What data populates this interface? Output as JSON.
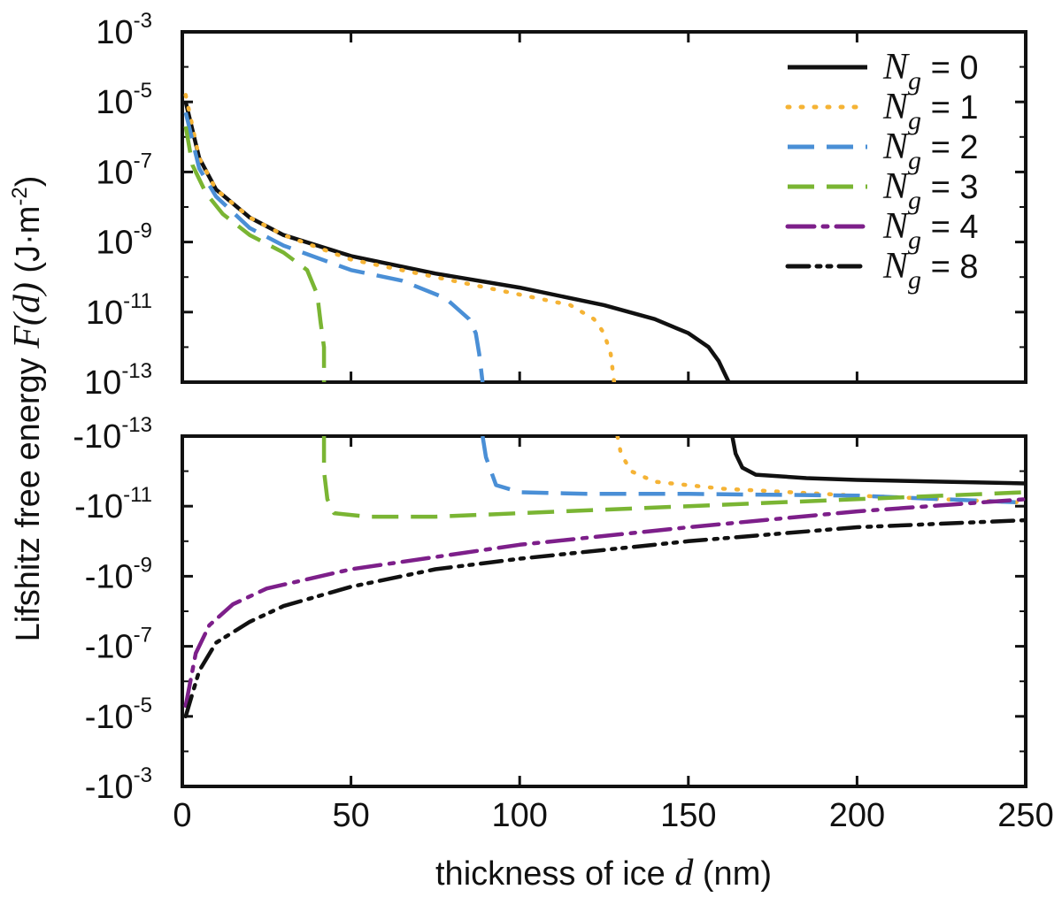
{
  "chart_data": {
    "type": "line",
    "xlabel": "thickness of ice d (nm)",
    "xlabel_parts": {
      "prefix": "thickness of ice ",
      "var": "d",
      "suffix": " (nm)"
    },
    "ylabel": "Lifshitz free energy F(d) (J·m⁻²)",
    "ylabel_parts": {
      "prefix": "Lifshitz free energy ",
      "var": "F(d)",
      "suffix": " (J·m",
      "exp": "-2",
      "close": ")"
    },
    "xlim": [
      0,
      250
    ],
    "x_ticks": [
      0,
      50,
      100,
      150,
      200,
      250
    ],
    "top_panel": {
      "scale": "log",
      "ylim_exp": [
        -13,
        -3
      ],
      "tick_exps": [
        -3,
        -5,
        -7,
        -9,
        -11,
        -13
      ],
      "tick_base": "10"
    },
    "bottom_panel": {
      "scale": "negative-log",
      "ylim_exp": [
        -13,
        -3
      ],
      "tick_exps": [
        -13,
        -11,
        -9,
        -7,
        -5,
        -3
      ],
      "tick_base": "-10"
    },
    "legend": {
      "position": "top-right",
      "symbol": "N",
      "subscript": "g",
      "entries": [
        "= 0",
        "= 1",
        "= 2",
        "= 3",
        "= 4",
        "= 8"
      ]
    },
    "series": [
      {
        "name": "N_g = 0",
        "color": "#111111",
        "dash": "solid",
        "top": [
          [
            1,
            -5.0
          ],
          [
            5,
            -6.6
          ],
          [
            10,
            -7.5
          ],
          [
            20,
            -8.3
          ],
          [
            30,
            -8.8
          ],
          [
            50,
            -9.4
          ],
          [
            75,
            -9.9
          ],
          [
            100,
            -10.3
          ],
          [
            125,
            -10.8
          ],
          [
            140,
            -11.2
          ],
          [
            150,
            -11.6
          ],
          [
            156,
            -12.0
          ],
          [
            159,
            -12.4
          ],
          [
            161,
            -12.8
          ],
          [
            162,
            -13.0
          ]
        ],
        "bottom": [
          [
            163,
            -13.0
          ],
          [
            164,
            -12.5
          ],
          [
            166,
            -12.1
          ],
          [
            170,
            -11.9
          ],
          [
            185,
            -11.8
          ],
          [
            200,
            -11.75
          ],
          [
            225,
            -11.7
          ],
          [
            250,
            -11.65
          ]
        ]
      },
      {
        "name": "N_g = 1",
        "color": "#f5b335",
        "dash": "dotted",
        "top": [
          [
            1,
            -4.8
          ],
          [
            5,
            -6.6
          ],
          [
            10,
            -7.5
          ],
          [
            20,
            -8.3
          ],
          [
            30,
            -8.8
          ],
          [
            50,
            -9.5
          ],
          [
            75,
            -10.0
          ],
          [
            100,
            -10.5
          ],
          [
            115,
            -10.8
          ],
          [
            122,
            -11.2
          ],
          [
            125,
            -11.6
          ],
          [
            127,
            -12.2
          ],
          [
            128,
            -13.0
          ]
        ],
        "bottom": [
          [
            129,
            -13.0
          ],
          [
            130,
            -12.5
          ],
          [
            133,
            -12.0
          ],
          [
            140,
            -11.7
          ],
          [
            160,
            -11.5
          ],
          [
            200,
            -11.3
          ],
          [
            250,
            -11.1
          ]
        ]
      },
      {
        "name": "N_g = 2",
        "color": "#4a8fd6",
        "dash": "dashed",
        "top": [
          [
            1,
            -5.3
          ],
          [
            5,
            -6.9
          ],
          [
            10,
            -7.7
          ],
          [
            20,
            -8.6
          ],
          [
            30,
            -9.1
          ],
          [
            50,
            -9.8
          ],
          [
            65,
            -10.1
          ],
          [
            78,
            -10.6
          ],
          [
            85,
            -11.2
          ],
          [
            87,
            -11.6
          ],
          [
            88,
            -12.2
          ],
          [
            89,
            -13.0
          ]
        ],
        "bottom": [
          [
            89,
            -13.0
          ],
          [
            90,
            -12.4
          ],
          [
            93,
            -11.6
          ],
          [
            100,
            -11.4
          ],
          [
            120,
            -11.35
          ],
          [
            150,
            -11.35
          ],
          [
            200,
            -11.3
          ],
          [
            250,
            -11.1
          ]
        ]
      },
      {
        "name": "N_g = 3",
        "color": "#7ab533",
        "dash": "dashed",
        "top": [
          [
            1,
            -5.7
          ],
          [
            3,
            -6.8
          ],
          [
            7,
            -7.6
          ],
          [
            12,
            -8.2
          ],
          [
            20,
            -8.8
          ],
          [
            30,
            -9.3
          ],
          [
            37,
            -9.8
          ],
          [
            40,
            -10.5
          ],
          [
            41,
            -11.3
          ],
          [
            42,
            -12.0
          ],
          [
            42,
            -13.0
          ]
        ],
        "bottom": [
          [
            42,
            -13.0
          ],
          [
            42,
            -12.0
          ],
          [
            43,
            -11.2
          ],
          [
            45,
            -10.8
          ],
          [
            55,
            -10.7
          ],
          [
            75,
            -10.7
          ],
          [
            100,
            -10.8
          ],
          [
            150,
            -11.0
          ],
          [
            200,
            -11.2
          ],
          [
            250,
            -11.4
          ]
        ]
      },
      {
        "name": "N_g = 4",
        "color": "#7d1f8a",
        "dash": "dashdot",
        "bottom": [
          [
            1,
            -5.3
          ],
          [
            4,
            -6.8
          ],
          [
            8,
            -7.6
          ],
          [
            15,
            -8.2
          ],
          [
            25,
            -8.65
          ],
          [
            50,
            -9.2
          ],
          [
            100,
            -9.9
          ],
          [
            150,
            -10.4
          ],
          [
            200,
            -10.85
          ],
          [
            250,
            -11.2
          ]
        ]
      },
      {
        "name": "N_g = 8",
        "color": "#111111",
        "dash": "dashdotdot",
        "bottom": [
          [
            1,
            -5.0
          ],
          [
            5,
            -6.3
          ],
          [
            10,
            -7.1
          ],
          [
            20,
            -7.7
          ],
          [
            30,
            -8.15
          ],
          [
            50,
            -8.7
          ],
          [
            75,
            -9.2
          ],
          [
            100,
            -9.5
          ],
          [
            150,
            -10.0
          ],
          [
            200,
            -10.4
          ],
          [
            250,
            -10.6
          ]
        ]
      }
    ]
  }
}
